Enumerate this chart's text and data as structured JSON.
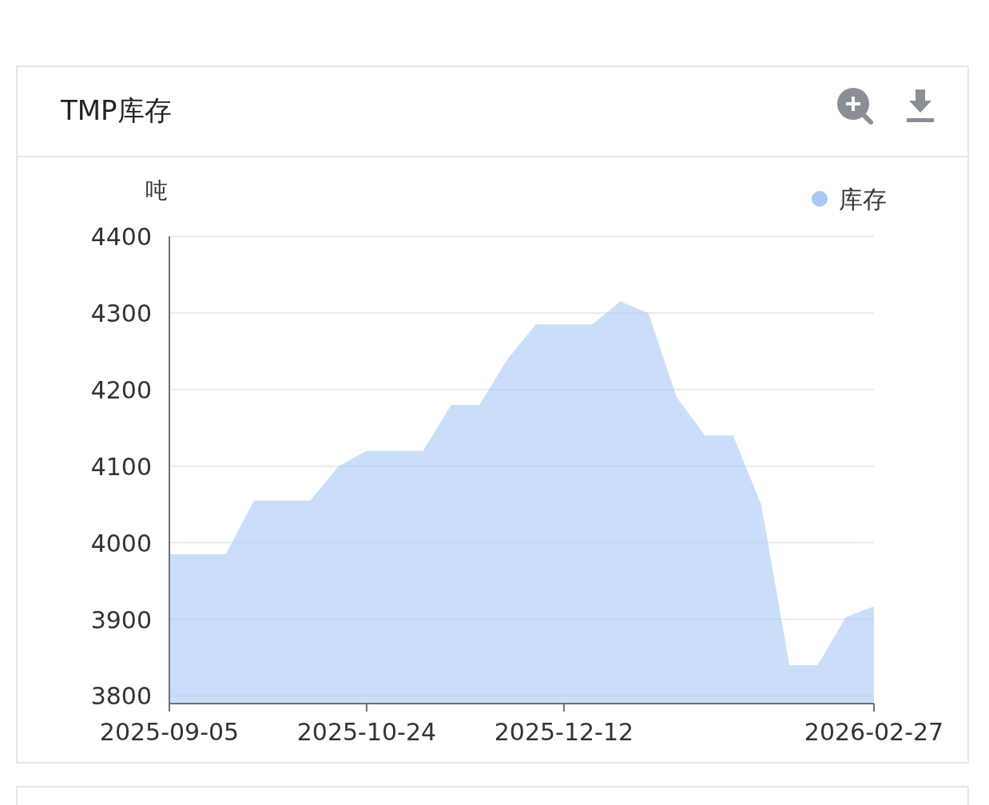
{
  "chart_data": {
    "type": "area",
    "title": "TMP库存",
    "ylabel": "吨",
    "x": [
      "2025-09-05",
      "2025-09-12",
      "2025-09-19",
      "2025-09-26",
      "2025-10-03",
      "2025-10-10",
      "2025-10-17",
      "2025-10-24",
      "2025-10-31",
      "2025-11-07",
      "2025-11-14",
      "2025-11-21",
      "2025-11-28",
      "2025-12-05",
      "2025-12-12",
      "2025-12-19",
      "2025-12-26",
      "2026-01-02",
      "2026-01-09",
      "2026-01-16",
      "2026-01-23",
      "2026-01-30",
      "2026-02-06",
      "2026-02-13",
      "2026-02-20",
      "2026-02-27"
    ],
    "series": [
      {
        "name": "库存",
        "color": "#a9c8f5",
        "values": [
          3985,
          3985,
          3985,
          4055,
          4055,
          4055,
          4100,
          4120,
          4120,
          4120,
          4180,
          4180,
          4240,
          4285,
          4285,
          4285,
          4315,
          4300,
          4190,
          4140,
          4140,
          4050,
          3840,
          3840,
          3903,
          3917
        ]
      }
    ],
    "xlim": [
      "2025-09-05",
      "2026-02-27"
    ],
    "xticks": [
      {
        "value": "2025-09-05",
        "label": "2025-09-05"
      },
      {
        "value": "2025-10-24",
        "label": "2025-10-24"
      },
      {
        "value": "2025-12-12",
        "label": "2025-12-12"
      },
      {
        "value": "2026-02-27",
        "label": "2026-02-27"
      }
    ],
    "ylim": [
      3790,
      4400
    ],
    "yticks": [
      3800,
      3900,
      4000,
      4100,
      4200,
      4300,
      4400
    ],
    "grid": "y",
    "legend": "top right",
    "marker": "none"
  }
}
